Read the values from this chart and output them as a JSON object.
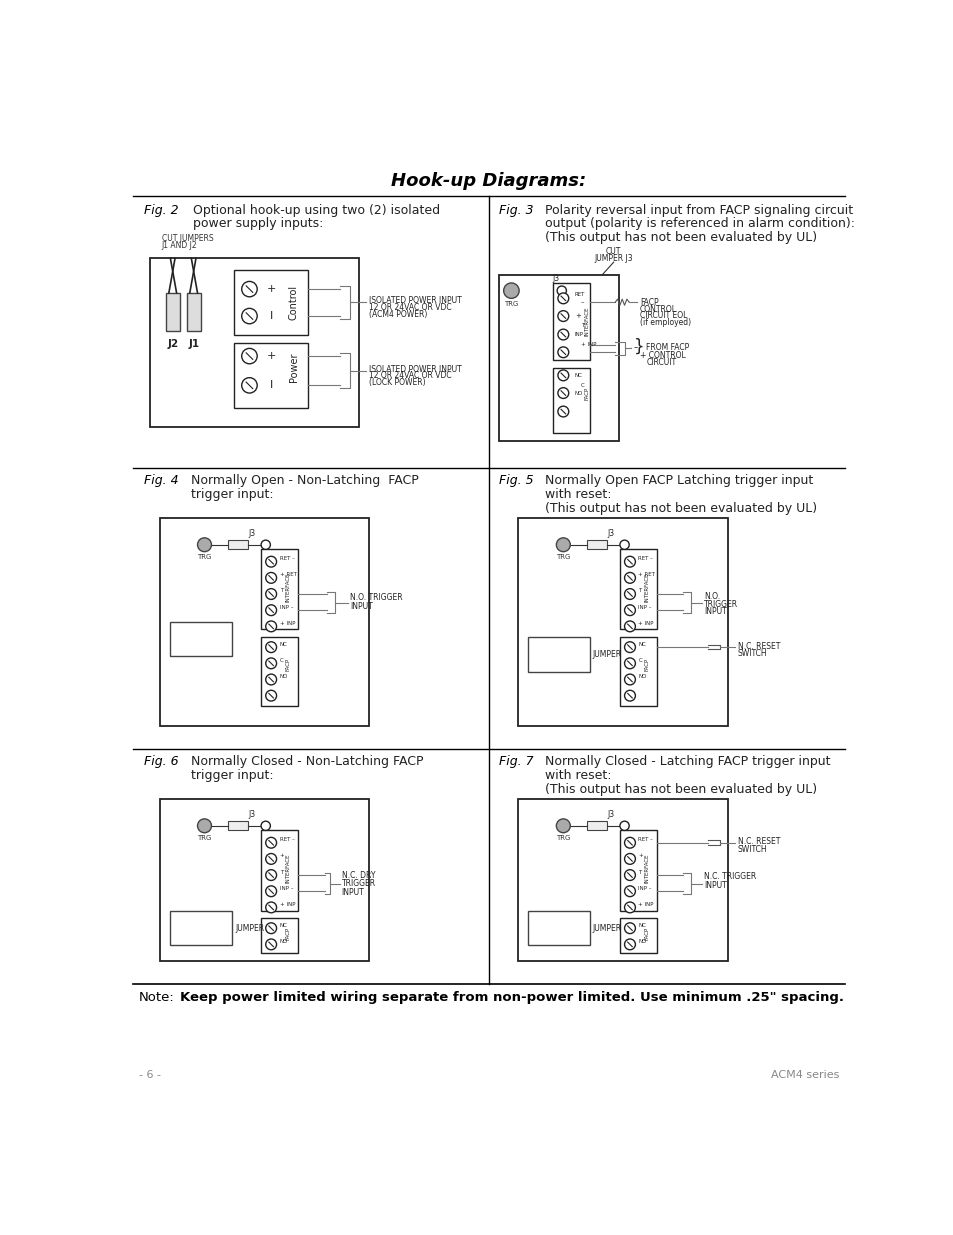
{
  "title": "Hook-up Diagrams:",
  "page_num": "- 6 -",
  "product": "ACM4 series",
  "background": "#ffffff"
}
